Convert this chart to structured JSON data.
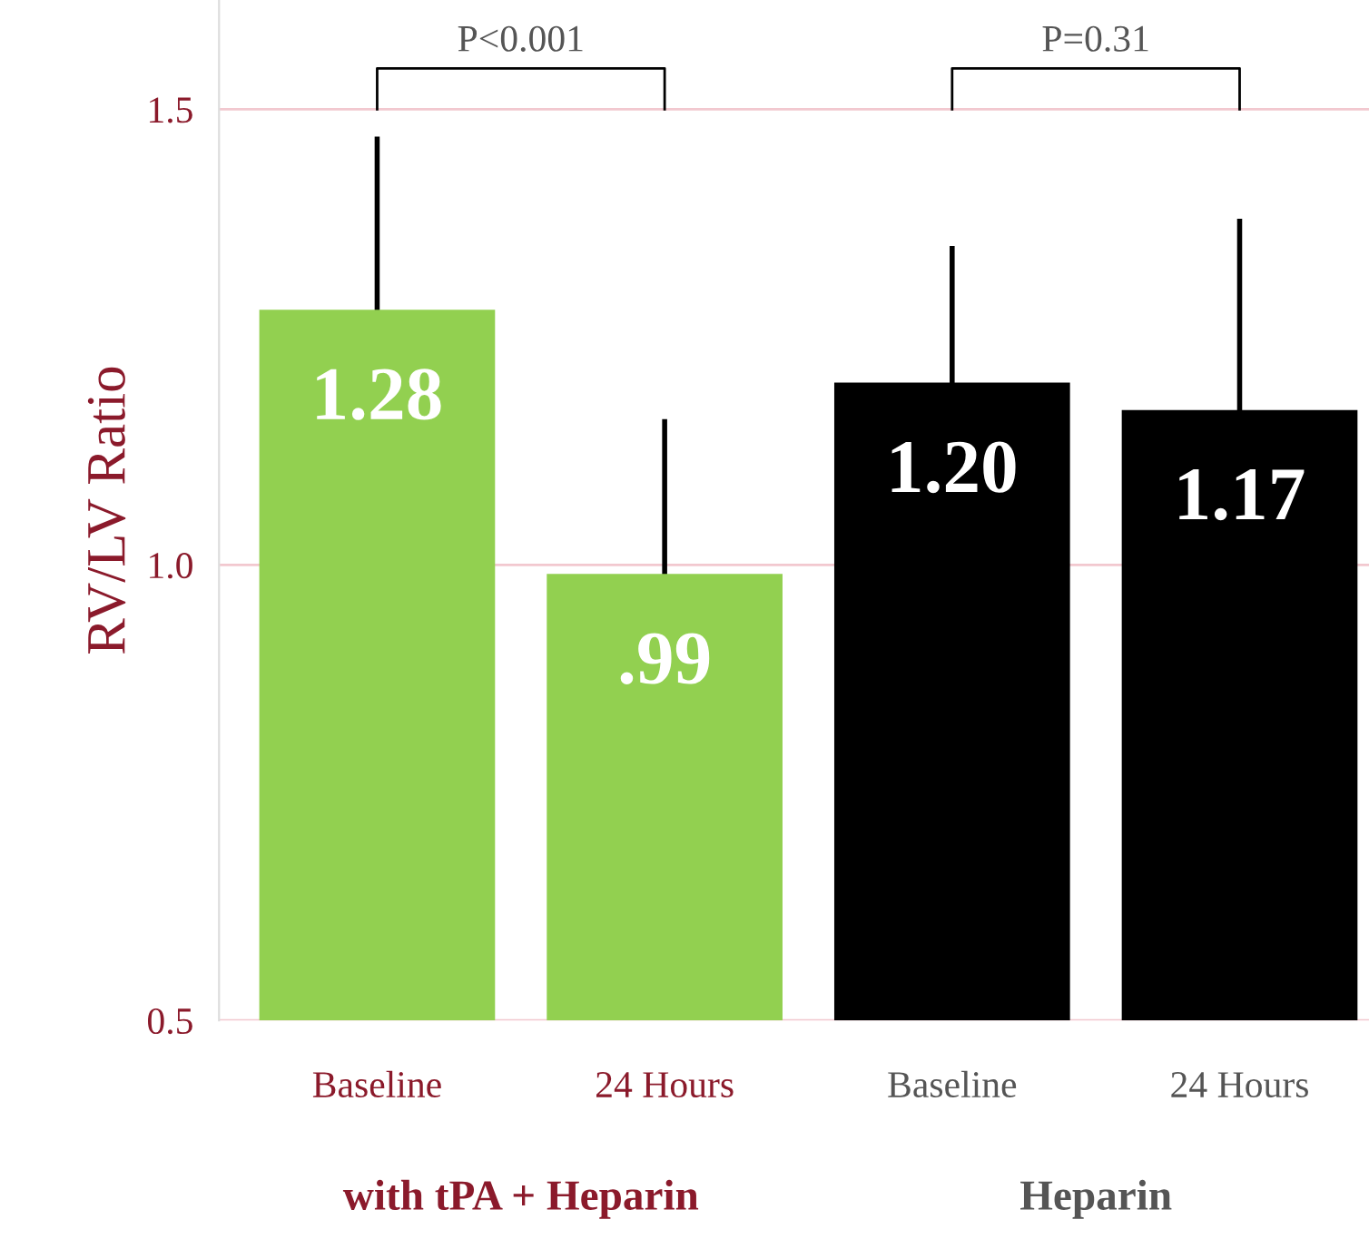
{
  "chart_data": {
    "type": "bar",
    "ylabel": "RV/LV Ratio",
    "categories": [
      "Baseline",
      "24 Hours",
      "Baseline",
      "24 Hours"
    ],
    "values": [
      1.28,
      0.99,
      1.2,
      1.17
    ],
    "colors": [
      "#92d050",
      "#92d050",
      "#000000",
      "#000000"
    ],
    "errors": [
      0.19,
      0.17,
      0.15,
      0.21
    ],
    "value_labels": [
      "1.28",
      ".99",
      "1.20",
      "1.17"
    ],
    "ylim": [
      0.5,
      1.62
    ],
    "yticks": [
      {
        "value": 0.5,
        "label": "0.5"
      },
      {
        "value": 1.0,
        "label": "1.0"
      },
      {
        "value": 1.5,
        "label": "1.5"
      }
    ],
    "grid": "y",
    "annotations": [
      "P<0.001",
      "P=0.31",
      "with tPA + Heparin",
      "Heparin"
    ]
  }
}
